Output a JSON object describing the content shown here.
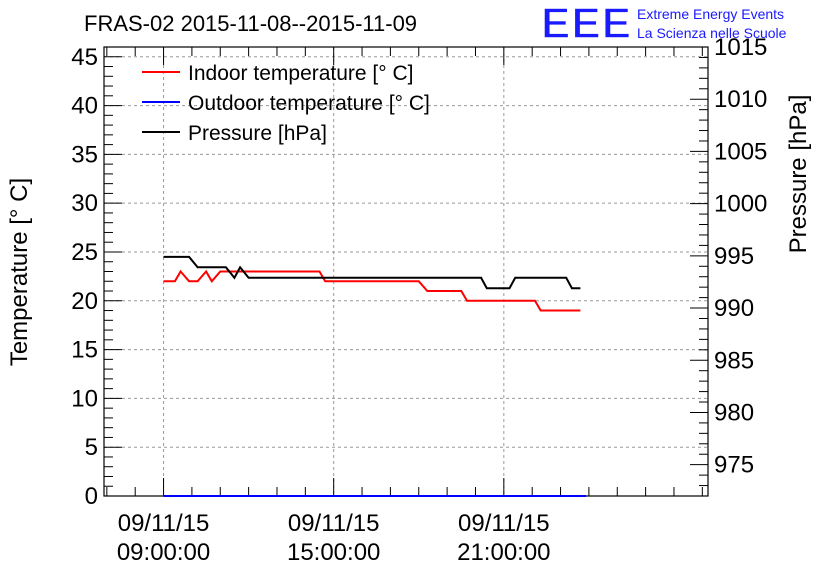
{
  "chart_data": {
    "type": "line",
    "title": "FRAS-02 2015-11-08--2015-11-09",
    "ylabel_left": "Temperature [° C]",
    "ylabel_right": "Pressure [hPa]",
    "ylim_left": [
      0,
      46
    ],
    "ylim_right": [
      972,
      1015
    ],
    "left_ticks": [
      0,
      5,
      10,
      15,
      20,
      25,
      30,
      35,
      40,
      45
    ],
    "right_ticks": [
      975,
      980,
      985,
      990,
      995,
      1000,
      1005,
      1010,
      1015
    ],
    "xlim_hours": [
      6.9,
      28.2
    ],
    "x_ticks": [
      {
        "hour": 9,
        "date": "09/11/15",
        "time": "09:00:00"
      },
      {
        "hour": 15,
        "date": "09/11/15",
        "time": "15:00:00"
      },
      {
        "hour": 21,
        "date": "09/11/15",
        "time": "21:00:00"
      }
    ],
    "legend_position": "top-left",
    "series": [
      {
        "name": "Indoor temperature [° C]",
        "axis": "left",
        "color": "#ff0000",
        "points": [
          [
            9.0,
            22
          ],
          [
            9.4,
            22
          ],
          [
            9.6,
            23
          ],
          [
            9.9,
            22
          ],
          [
            10.2,
            22
          ],
          [
            10.5,
            23
          ],
          [
            10.7,
            22
          ],
          [
            11.0,
            23
          ],
          [
            11.3,
            23
          ],
          [
            11.6,
            23
          ],
          [
            12.0,
            23
          ],
          [
            13.0,
            23
          ],
          [
            14.5,
            23
          ],
          [
            14.7,
            22
          ],
          [
            16.0,
            22
          ],
          [
            18.0,
            22
          ],
          [
            18.3,
            21
          ],
          [
            19.5,
            21
          ],
          [
            19.7,
            20
          ],
          [
            21.0,
            20
          ],
          [
            22.1,
            20
          ],
          [
            22.3,
            19
          ],
          [
            23.7,
            19
          ]
        ]
      },
      {
        "name": "Outdoor temperature [° C]",
        "axis": "left",
        "color": "#0000ff",
        "points": [
          [
            9.0,
            0
          ],
          [
            23.9,
            0
          ]
        ]
      },
      {
        "name": "Pressure [hPa]",
        "axis": "right",
        "color": "#000000",
        "points": [
          [
            9.0,
            994.9
          ],
          [
            9.9,
            994.9
          ],
          [
            10.2,
            993.9
          ],
          [
            11.2,
            993.9
          ],
          [
            11.5,
            992.9
          ],
          [
            11.7,
            993.9
          ],
          [
            12.0,
            992.9
          ],
          [
            14.0,
            992.9
          ],
          [
            18.0,
            992.9
          ],
          [
            20.2,
            992.9
          ],
          [
            20.4,
            991.9
          ],
          [
            21.2,
            991.9
          ],
          [
            21.4,
            992.9
          ],
          [
            23.2,
            992.9
          ],
          [
            23.4,
            991.9
          ],
          [
            23.7,
            991.9
          ]
        ]
      }
    ]
  },
  "logo": {
    "mark": "EEE",
    "line1": "Extreme Energy Events",
    "line2": "La Scienza nelle Scuole"
  }
}
